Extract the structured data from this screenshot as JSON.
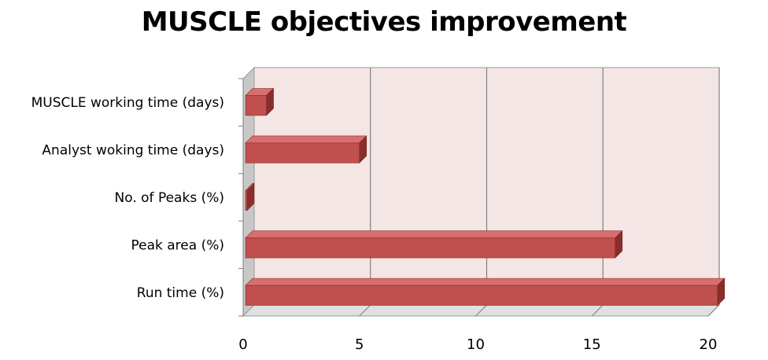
{
  "chart_data": {
    "type": "bar",
    "orientation": "horizontal",
    "title": "MUSCLE objectives improvement",
    "categories": [
      "MUSCLE working time (days)",
      "Analyst woking time (days)",
      "No. of Peaks (%)",
      "Peak area (%)",
      "Run time (%)"
    ],
    "values": [
      1,
      5,
      0.1,
      16,
      20.4
    ],
    "xlim": [
      0,
      20
    ],
    "xticks": [
      "0",
      "5",
      "10",
      "15",
      "20"
    ],
    "xlabel": "",
    "ylabel": "",
    "grid": true,
    "legend": "none",
    "style": "3d",
    "colors": {
      "bar_front": "#C0504D",
      "bar_top": "#D7706C",
      "bar_side": "#8B2E2B",
      "plot_back": "#F5E6E6",
      "plot_floor": "#E0E0E0",
      "plot_wall": "#C8C8C8",
      "grid": "#7F7F7F"
    }
  }
}
